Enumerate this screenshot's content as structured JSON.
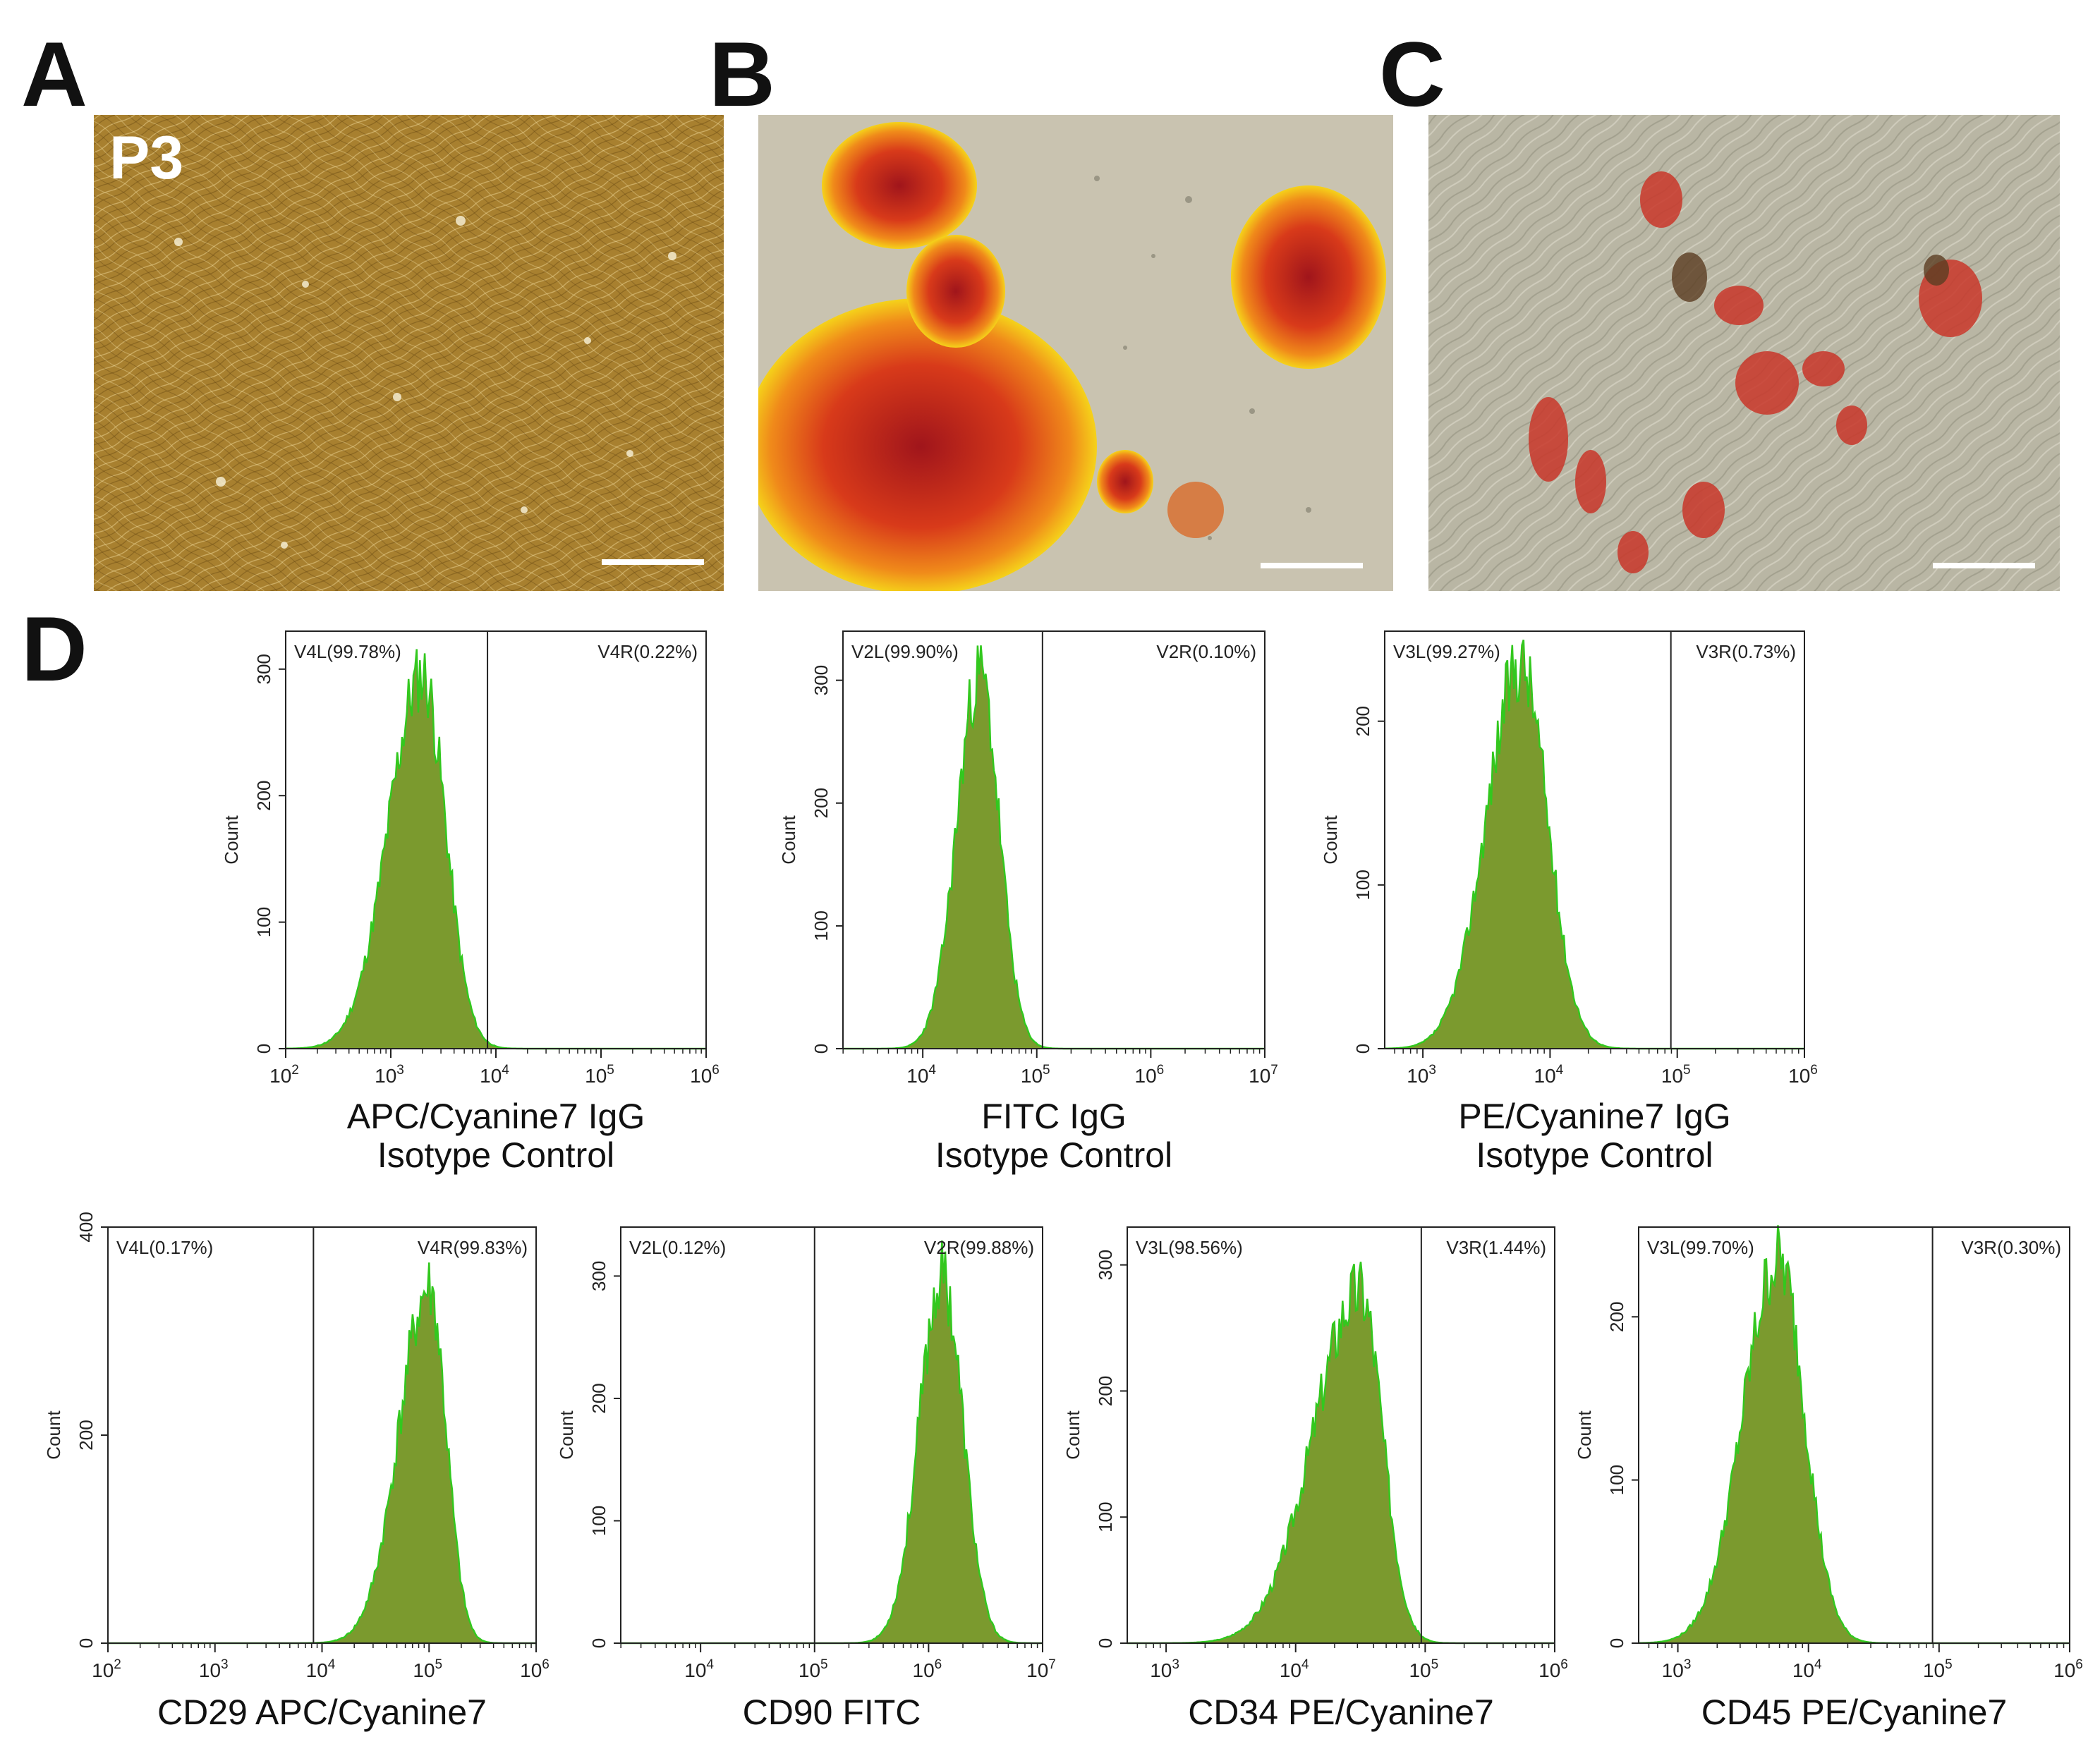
{
  "panels": {
    "A": {
      "letter": "A",
      "overlay_label": "P3",
      "has_scale_bar": true
    },
    "B": {
      "letter": "B",
      "has_scale_bar": true
    },
    "C": {
      "letter": "C",
      "has_scale_bar": true
    },
    "D": {
      "letter": "D"
    }
  },
  "colors": {
    "hist_fill": "#7b9a2e",
    "hist_edge": "#32c81e",
    "hist_edge_red": "#c0352a",
    "phase_bg": "#a8802f",
    "alizarin": "#d8401b",
    "oil_red": "#c9372a"
  },
  "chart_data": [
    {
      "type": "area",
      "id": "apc-isotype",
      "caption": [
        "APC/Cyanine7  IgG",
        "Isotype Control"
      ],
      "ylabel": "Count",
      "xscale": "log",
      "xlim_log": [
        2,
        6
      ],
      "xticks": [
        {
          "base": "10",
          "exp": "2"
        },
        {
          "base": "10",
          "exp": "3"
        },
        {
          "base": "10",
          "exp": "4"
        },
        {
          "base": "10",
          "exp": "5"
        },
        {
          "base": "10",
          "exp": "6"
        }
      ],
      "xtick_positions_log": [
        2,
        3,
        4,
        5,
        6
      ],
      "ylim": [
        0,
        330
      ],
      "yticks": [
        0,
        100,
        200,
        300
      ],
      "gate_log": 3.92,
      "gate_labels": {
        "left": "V4L(99.78%)",
        "right": "V4R(0.22%)"
      },
      "peak_log": 3.3,
      "peak_count": 295,
      "width_left": 0.32,
      "width_right": 0.22,
      "seed": 11
    },
    {
      "type": "area",
      "id": "fitc-isotype",
      "caption": [
        "FITC  IgG",
        "Isotype Control"
      ],
      "ylabel": "Count",
      "xscale": "log",
      "xlim_log": [
        3.3,
        7
      ],
      "xticks": [
        {
          "base": "10",
          "exp": "4"
        },
        {
          "base": "10",
          "exp": "5"
        },
        {
          "base": "10",
          "exp": "6"
        },
        {
          "base": "10",
          "exp": "7"
        }
      ],
      "xtick_positions_log": [
        4,
        5,
        6,
        7
      ],
      "ylim": [
        0,
        340
      ],
      "yticks": [
        0,
        100,
        200,
        300
      ],
      "gate_log": 5.05,
      "gate_labels": {
        "left": "V2L(99.90%)",
        "right": "V2R(0.10%)"
      },
      "peak_log": 4.5,
      "peak_count": 305,
      "width_left": 0.2,
      "width_right": 0.17,
      "seed": 23
    },
    {
      "type": "area",
      "id": "pe-isotype",
      "caption": [
        "PE/Cyanine7 IgG",
        "Isotype Control"
      ],
      "ylabel": "Count",
      "xscale": "log",
      "xlim_log": [
        2.7,
        6
      ],
      "xticks": [
        {
          "base": "10",
          "exp": "3"
        },
        {
          "base": "10",
          "exp": "4"
        },
        {
          "base": "10",
          "exp": "5"
        },
        {
          "base": "10",
          "exp": "6"
        }
      ],
      "xtick_positions_log": [
        3,
        4,
        5,
        6
      ],
      "ylim": [
        0,
        255
      ],
      "yticks": [
        0,
        100,
        200
      ],
      "gate_log": 4.95,
      "gate_labels": {
        "left": "V3L(99.27%)",
        "right": "V3R(0.73%)"
      },
      "peak_log": 3.77,
      "peak_count": 235,
      "width_left": 0.27,
      "width_right": 0.21,
      "seed": 37
    },
    {
      "type": "area",
      "id": "cd29",
      "caption": [
        "CD29 APC/Cyanine7"
      ],
      "ylabel": "Count",
      "xscale": "log",
      "xlim_log": [
        2,
        6
      ],
      "xticks": [
        {
          "base": "10",
          "exp": "2"
        },
        {
          "base": "10",
          "exp": "3"
        },
        {
          "base": "10",
          "exp": "4"
        },
        {
          "base": "10",
          "exp": "5"
        },
        {
          "base": "10",
          "exp": "6"
        }
      ],
      "xtick_positions_log": [
        2,
        3,
        4,
        5,
        6
      ],
      "ylim": [
        0,
        400
      ],
      "yticks": [
        0,
        200,
        400
      ],
      "gate_log": 3.92,
      "gate_labels": {
        "left": "V4L(0.17%)",
        "right": "V4R(99.83%)"
      },
      "peak_log": 5.0,
      "peak_count": 340,
      "width_left": 0.28,
      "width_right": 0.16,
      "seed": 41
    },
    {
      "type": "area",
      "id": "cd90",
      "caption": [
        "CD90 FITC"
      ],
      "ylabel": "Count",
      "xscale": "log",
      "xlim_log": [
        3.3,
        7
      ],
      "xticks": [
        {
          "base": "10",
          "exp": "4"
        },
        {
          "base": "10",
          "exp": "5"
        },
        {
          "base": "10",
          "exp": "6"
        },
        {
          "base": "10",
          "exp": "7"
        }
      ],
      "xtick_positions_log": [
        4,
        5,
        6,
        7
      ],
      "ylim": [
        0,
        340
      ],
      "yticks": [
        0,
        100,
        200,
        300
      ],
      "gate_log": 5.0,
      "gate_labels": {
        "left": "V2L(0.12%)",
        "right": "V2R(99.88%)"
      },
      "peak_log": 6.12,
      "peak_count": 300,
      "width_left": 0.2,
      "width_right": 0.18,
      "seed": 53
    },
    {
      "type": "area",
      "id": "cd34",
      "caption": [
        "CD34 PE/Cyanine7"
      ],
      "ylabel": "Count",
      "xscale": "log",
      "xlim_log": [
        2.7,
        6
      ],
      "xticks": [
        {
          "base": "10",
          "exp": "3"
        },
        {
          "base": "10",
          "exp": "4"
        },
        {
          "base": "10",
          "exp": "5"
        },
        {
          "base": "10",
          "exp": "6"
        }
      ],
      "xtick_positions_log": [
        3,
        4,
        5,
        6
      ],
      "ylim": [
        0,
        330
      ],
      "yticks": [
        0,
        100,
        200,
        300
      ],
      "gate_log": 4.97,
      "gate_labels": {
        "left": "V3L(98.56%)",
        "right": "V3R(1.44%)"
      },
      "peak_log": 4.5,
      "peak_count": 280,
      "width_left": 0.36,
      "width_right": 0.17,
      "seed": 67
    },
    {
      "type": "area",
      "id": "cd45",
      "caption": [
        "CD45 PE/Cyanine7"
      ],
      "ylabel": "Count",
      "xscale": "log",
      "xlim_log": [
        2.7,
        6
      ],
      "xticks": [
        {
          "base": "10",
          "exp": "3"
        },
        {
          "base": "10",
          "exp": "4"
        },
        {
          "base": "10",
          "exp": "5"
        },
        {
          "base": "10",
          "exp": "6"
        }
      ],
      "xtick_positions_log": [
        3,
        4,
        5,
        6
      ],
      "ylim": [
        0,
        255
      ],
      "yticks": [
        0,
        100,
        200
      ],
      "gate_log": 4.95,
      "gate_labels": {
        "left": "V3L(99.70%)",
        "right": "V3R(0.30%)"
      },
      "peak_log": 3.77,
      "peak_count": 235,
      "width_left": 0.27,
      "width_right": 0.2,
      "seed": 79
    }
  ]
}
